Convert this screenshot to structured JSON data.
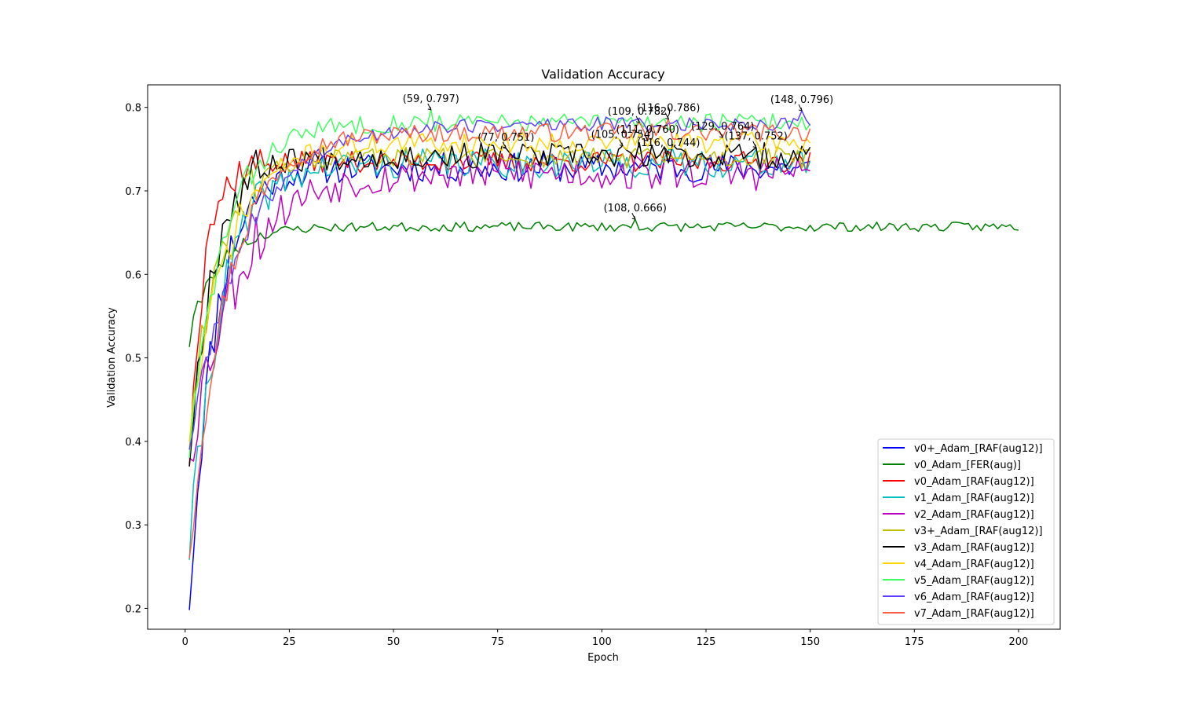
{
  "chart_data": {
    "type": "line",
    "title": "Validation Accuracy",
    "xlabel": "Epoch",
    "ylabel": "Validation Accuracy",
    "xlim": [
      -9,
      210
    ],
    "ylim": [
      0.175,
      0.827
    ],
    "xticks": [
      0,
      25,
      50,
      75,
      100,
      125,
      150,
      175,
      200
    ],
    "yticks": [
      0.2,
      0.3,
      0.4,
      0.5,
      0.6,
      0.7,
      0.8
    ],
    "ytick_labels": [
      "0.2",
      "0.3",
      "0.4",
      "0.5",
      "0.6",
      "0.7",
      "0.8"
    ],
    "grid": false,
    "legend_position": "lower-right",
    "series": [
      {
        "name": "v0+_Adam_[RAF(aug12)]",
        "color": "#0000ff",
        "epochs": 150,
        "start": 0.198,
        "plateau": 0.728,
        "tau": 6.0,
        "noise": 0.011,
        "seed": 11,
        "anchors": [
          [
            1,
            0.198
          ]
        ]
      },
      {
        "name": "v0_Adam_[FER(aug)]",
        "color": "#008000",
        "epochs": 200,
        "start": 0.513,
        "plateau": 0.657,
        "tau": 6.5,
        "noise": 0.0035,
        "seed": 23,
        "anchors": [
          [
            1,
            0.513
          ],
          [
            2,
            0.55
          ],
          [
            3,
            0.568
          ],
          [
            5,
            0.59
          ],
          [
            108,
            0.666
          ]
        ]
      },
      {
        "name": "v0_Adam_[RAF(aug12)]",
        "color": "#ff0000",
        "epochs": 150,
        "start": 0.37,
        "plateau": 0.735,
        "tau": 3.5,
        "noise": 0.008,
        "seed": 37,
        "anchors": [
          [
            1,
            0.37
          ],
          [
            5,
            0.633
          ],
          [
            6,
            0.66
          ],
          [
            11,
            0.704
          ]
        ]
      },
      {
        "name": "v1_Adam_[RAF(aug12)]",
        "color": "#00bfbf",
        "epochs": 150,
        "start": 0.258,
        "plateau": 0.733,
        "tau": 7.5,
        "noise": 0.011,
        "seed": 41,
        "anchors": [
          [
            1,
            0.258
          ]
        ]
      },
      {
        "name": "v2_Adam_[RAF(aug12)]",
        "color": "#bf00bf",
        "epochs": 150,
        "start": 0.38,
        "plateau": 0.722,
        "tau": 11.0,
        "noise": 0.014,
        "seed": 53,
        "anchors": [
          [
            1,
            0.38
          ]
        ]
      },
      {
        "name": "v3+_Adam_[RAF(aug12)]",
        "color": "#bfbf00",
        "epochs": 150,
        "start": 0.39,
        "plateau": 0.74,
        "tau": 6.5,
        "noise": 0.008,
        "seed": 61,
        "anchors": [
          [
            1,
            0.39
          ],
          [
            116,
            0.744
          ]
        ]
      },
      {
        "name": "v3_Adam_[RAF(aug12)]",
        "color": "#000000",
        "epochs": 150,
        "start": 0.37,
        "plateau": 0.742,
        "tau": 5.5,
        "noise": 0.01,
        "seed": 67,
        "anchors": [
          [
            1,
            0.37
          ],
          [
            77,
            0.751
          ],
          [
            105,
            0.754
          ],
          [
            137,
            0.752
          ]
        ]
      },
      {
        "name": "v4_Adam_[RAF(aug12)]",
        "color": "#ffd700",
        "epochs": 150,
        "start": 0.4,
        "plateau": 0.758,
        "tau": 9.0,
        "noise": 0.008,
        "seed": 71,
        "anchors": [
          [
            1,
            0.4
          ],
          [
            129,
            0.764
          ]
        ]
      },
      {
        "name": "v5_Adam_[RAF(aug12)]",
        "color": "#3fff5f",
        "epochs": 150,
        "start": 0.38,
        "plateau": 0.782,
        "tau": 8.0,
        "noise": 0.007,
        "seed": 83,
        "anchors": [
          [
            1,
            0.38
          ],
          [
            59,
            0.797
          ]
        ]
      },
      {
        "name": "v6_Adam_[RAF(aug12)]",
        "color": "#5f3fff",
        "epochs": 150,
        "start": 0.39,
        "plateau": 0.78,
        "tau": 13.0,
        "noise": 0.0055,
        "seed": 89,
        "anchors": [
          [
            1,
            0.39
          ],
          [
            148,
            0.796
          ]
        ]
      },
      {
        "name": "v7_Adam_[RAF(aug12)]",
        "color": "#ff5f3f",
        "epochs": 150,
        "start": 0.26,
        "plateau": 0.77,
        "tau": 9.0,
        "noise": 0.007,
        "seed": 97,
        "anchors": [
          [
            1,
            0.26
          ],
          [
            109,
            0.782
          ],
          [
            111,
            0.76
          ],
          [
            116,
            0.786
          ]
        ]
      }
    ],
    "annotations": [
      {
        "text": "(59, 0.797)",
        "x": 59,
        "y": 0.797
      },
      {
        "text": "(109, 0.782)",
        "x": 109,
        "y": 0.782
      },
      {
        "text": "(116, 0.786)",
        "x": 116,
        "y": 0.786
      },
      {
        "text": "(148, 0.796)",
        "x": 148,
        "y": 0.796
      },
      {
        "text": "(77, 0.751)",
        "x": 77,
        "y": 0.751
      },
      {
        "text": "(105, 0.754)",
        "x": 105,
        "y": 0.754
      },
      {
        "text": "(111, 0.760)",
        "x": 111,
        "y": 0.76
      },
      {
        "text": "(116, 0.744)",
        "x": 116,
        "y": 0.744
      },
      {
        "text": "(129, 0.764)",
        "x": 129,
        "y": 0.764
      },
      {
        "text": "(137, 0.752)",
        "x": 137,
        "y": 0.752
      },
      {
        "text": "(108, 0.666)",
        "x": 108,
        "y": 0.666
      }
    ]
  }
}
